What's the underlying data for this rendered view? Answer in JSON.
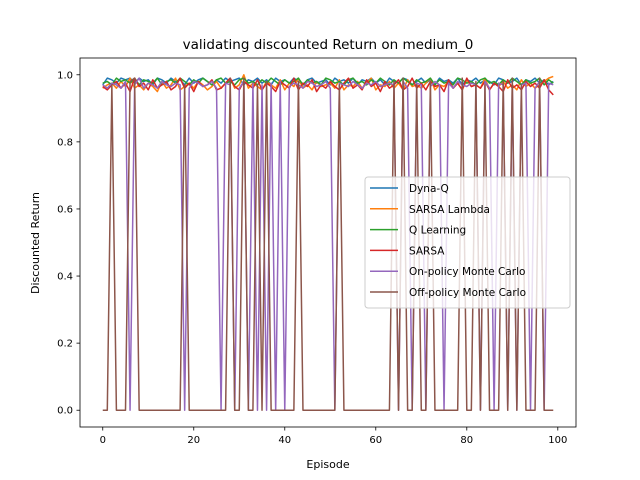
{
  "chart_data": {
    "type": "line",
    "title": "validating discounted Return on medium_0",
    "xlabel": "Episode",
    "ylabel": "Discounted Return",
    "xlim": [
      -5,
      104
    ],
    "ylim": [
      -0.05,
      1.05
    ],
    "xticks": [
      0,
      20,
      40,
      60,
      80,
      100
    ],
    "yticks": [
      0.0,
      0.2,
      0.4,
      0.6,
      0.8,
      1.0
    ],
    "ytick_labels": [
      "0.0",
      "0.2",
      "0.4",
      "0.6",
      "0.8",
      "1.0"
    ],
    "grid": false,
    "legend_position": "center-right",
    "series": [
      {
        "name": "Dyna-Q",
        "color": "#1f77b4",
        "values": [
          0.97,
          0.99,
          0.985,
          0.975,
          0.99,
          0.985,
          0.99,
          0.975,
          0.99,
          0.98,
          0.985,
          0.97,
          0.99,
          0.985,
          0.975,
          0.99,
          0.98,
          0.985,
          0.97,
          0.99,
          0.975,
          0.985,
          0.99,
          0.98,
          0.97,
          0.985,
          0.975,
          0.99,
          0.98,
          0.985,
          0.99,
          0.97,
          0.985,
          0.98,
          0.99,
          0.975,
          0.985,
          0.97,
          0.99,
          0.98,
          0.985,
          0.975,
          0.99,
          0.98,
          0.97,
          0.985,
          0.99,
          0.975,
          0.98,
          0.985,
          0.97,
          0.99,
          0.98,
          0.985,
          0.975,
          0.99,
          0.97,
          0.985,
          0.98,
          0.99,
          0.975,
          0.985,
          0.97,
          0.99,
          0.98,
          0.975,
          0.99,
          0.985,
          0.97,
          0.98,
          0.99,
          0.975,
          0.985,
          0.97,
          0.99,
          0.98,
          0.985,
          0.975,
          0.99,
          0.97,
          0.985,
          0.98,
          0.99,
          0.975,
          0.985,
          0.98,
          0.97,
          0.99,
          0.985,
          0.975,
          0.98,
          0.99,
          0.97,
          0.985,
          0.98,
          0.99,
          0.975,
          0.985,
          0.97,
          0.98
        ]
      },
      {
        "name": "SARSA Lambda",
        "color": "#ff7f0e",
        "values": [
          0.96,
          0.97,
          0.975,
          0.96,
          0.98,
          0.965,
          0.99,
          0.96,
          0.97,
          0.955,
          0.975,
          0.965,
          0.95,
          0.98,
          0.96,
          0.97,
          0.99,
          0.955,
          0.965,
          0.975,
          0.96,
          0.98,
          0.97,
          0.955,
          0.965,
          0.98,
          0.96,
          0.975,
          0.99,
          0.96,
          0.97,
          1.0,
          0.96,
          0.975,
          0.965,
          0.955,
          0.98,
          0.97,
          0.96,
          0.985,
          0.955,
          0.975,
          0.965,
          0.99,
          0.96,
          0.97,
          0.955,
          0.98,
          0.965,
          0.97,
          0.975,
          0.96,
          0.985,
          0.955,
          0.97,
          0.965,
          0.98,
          0.96,
          0.975,
          0.99,
          0.955,
          0.97,
          0.965,
          0.98,
          0.96,
          0.975,
          0.955,
          0.985,
          0.965,
          0.97,
          0.96,
          0.975,
          0.99,
          0.955,
          0.97,
          0.965,
          0.98,
          0.96,
          0.975,
          0.955,
          0.985,
          0.965,
          0.97,
          0.96,
          0.99,
          0.955,
          0.975,
          0.965,
          0.98,
          0.96,
          0.97,
          0.955,
          0.985,
          0.965,
          0.975,
          0.96,
          0.97,
          0.98,
          0.99,
          0.995
        ]
      },
      {
        "name": "Q Learning",
        "color": "#2ca02c",
        "values": [
          0.975,
          0.98,
          0.97,
          0.99,
          0.98,
          0.985,
          0.975,
          0.99,
          0.97,
          0.985,
          0.98,
          0.975,
          0.99,
          0.97,
          0.98,
          0.985,
          0.975,
          0.99,
          0.98,
          0.97,
          0.985,
          0.975,
          0.99,
          0.98,
          0.97,
          0.985,
          0.99,
          0.975,
          0.98,
          0.97,
          0.985,
          0.99,
          0.975,
          0.98,
          0.97,
          0.985,
          0.975,
          0.99,
          0.98,
          0.97,
          0.985,
          0.975,
          0.98,
          0.99,
          0.97,
          0.985,
          0.975,
          0.98,
          0.97,
          0.99,
          0.985,
          0.975,
          0.98,
          0.97,
          0.985,
          0.99,
          0.975,
          0.98,
          0.97,
          0.985,
          0.975,
          0.99,
          0.98,
          0.97,
          0.985,
          0.975,
          0.99,
          0.98,
          0.97,
          0.985,
          0.975,
          0.98,
          0.99,
          0.97,
          0.985,
          0.975,
          0.98,
          0.97,
          0.99,
          0.985,
          0.975,
          0.98,
          0.97,
          0.985,
          0.99,
          0.975,
          0.98,
          0.97,
          0.985,
          0.975,
          0.99,
          0.98,
          0.97,
          0.985,
          0.975,
          0.98,
          0.99,
          0.97,
          0.985,
          0.975
        ]
      },
      {
        "name": "SARSA",
        "color": "#d62728",
        "values": [
          0.965,
          0.955,
          0.97,
          0.98,
          0.96,
          0.975,
          0.95,
          0.99,
          0.965,
          0.975,
          0.955,
          0.985,
          0.96,
          0.97,
          0.98,
          0.955,
          0.965,
          0.99,
          0.96,
          0.975,
          0.95,
          0.98,
          0.965,
          0.97,
          0.985,
          0.955,
          0.96,
          0.975,
          0.99,
          0.965,
          0.955,
          0.98,
          0.97,
          0.96,
          0.985,
          0.955,
          0.975,
          0.965,
          0.95,
          0.98,
          0.97,
          0.96,
          0.99,
          0.955,
          0.975,
          0.965,
          0.985,
          0.95,
          0.97,
          0.96,
          0.98,
          0.965,
          0.955,
          0.975,
          0.99,
          0.96,
          0.97,
          0.955,
          0.985,
          0.965,
          0.975,
          0.95,
          0.98,
          0.96,
          0.97,
          0.985,
          0.955,
          0.965,
          0.99,
          0.96,
          0.975,
          0.955,
          0.98,
          0.965,
          0.97,
          0.95,
          0.985,
          0.96,
          0.975,
          0.955,
          0.99,
          0.965,
          0.97,
          0.96,
          0.98,
          0.955,
          0.975,
          0.965,
          0.95,
          0.985,
          0.96,
          0.97,
          0.955,
          0.98,
          0.965,
          0.975,
          0.96,
          0.985,
          0.955,
          0.94
        ]
      },
      {
        "name": "On-policy Monte Carlo",
        "color": "#9467bd",
        "values": [
          0.97,
          0.96,
          0.975,
          0.97,
          0.96,
          0.98,
          0.0,
          0.97,
          0.99,
          0.96,
          0.975,
          0.97,
          0.96,
          0.98,
          0.97,
          0.965,
          0.975,
          0.97,
          0.0,
          0.96,
          0.98,
          0.975,
          0.965,
          0.97,
          0.98,
          0.96,
          0.0,
          0.975,
          0.97,
          0.0,
          0.96,
          0.98,
          0.0,
          0.975,
          0.0,
          0.97,
          0.0,
          0.975,
          0.0,
          0.98,
          0.0,
          0.965,
          0.975,
          0.97,
          0.96,
          0.98,
          0.975,
          0.965,
          0.97,
          0.98,
          0.96,
          0.0,
          0.975,
          0.97,
          0.965,
          0.98,
          0.97,
          0.96,
          0.975,
          0.97,
          0.98,
          0.965,
          0.97,
          0.975,
          0.97,
          0.0,
          0.98,
          0.96,
          0.0,
          0.975,
          0.97,
          0.0,
          0.965,
          0.98,
          0.97,
          0.0,
          0.975,
          0.96,
          0.98,
          0.97,
          0.965,
          0.975,
          0.97,
          0.0,
          0.98,
          0.96,
          0.0,
          0.975,
          0.97,
          0.0,
          0.965,
          0.0,
          0.97,
          0.975,
          0.0,
          0.96,
          0.98,
          0.0,
          0.975,
          0.97
        ]
      },
      {
        "name": "Off-policy Monte Carlo",
        "color": "#8c564b",
        "values": [
          0.0,
          0.0,
          0.97,
          0.0,
          0.0,
          0.0,
          0.98,
          0.99,
          0.0,
          0.0,
          0.0,
          0.0,
          0.0,
          0.0,
          0.0,
          0.0,
          0.0,
          0.0,
          0.97,
          0.0,
          0.0,
          0.0,
          0.0,
          0.0,
          0.0,
          0.0,
          0.0,
          0.0,
          0.99,
          0.0,
          0.0,
          0.99,
          0.0,
          0.0,
          0.97,
          0.0,
          0.98,
          0.0,
          0.0,
          0.0,
          0.0,
          0.0,
          0.0,
          0.98,
          0.0,
          0.0,
          0.0,
          0.0,
          0.0,
          0.0,
          0.0,
          0.0,
          0.97,
          0.0,
          0.0,
          0.0,
          0.0,
          0.0,
          0.0,
          0.0,
          0.0,
          0.0,
          0.0,
          0.0,
          0.98,
          0.0,
          0.99,
          0.0,
          0.0,
          0.97,
          0.0,
          0.0,
          0.98,
          0.0,
          0.0,
          0.0,
          0.0,
          0.0,
          0.0,
          0.99,
          0.0,
          0.0,
          0.98,
          0.0,
          0.97,
          0.0,
          0.0,
          0.0,
          0.98,
          0.0,
          0.99,
          0.0,
          0.97,
          0.0,
          0.0,
          0.0,
          0.99,
          0.0,
          0.0,
          0.0
        ]
      }
    ]
  }
}
